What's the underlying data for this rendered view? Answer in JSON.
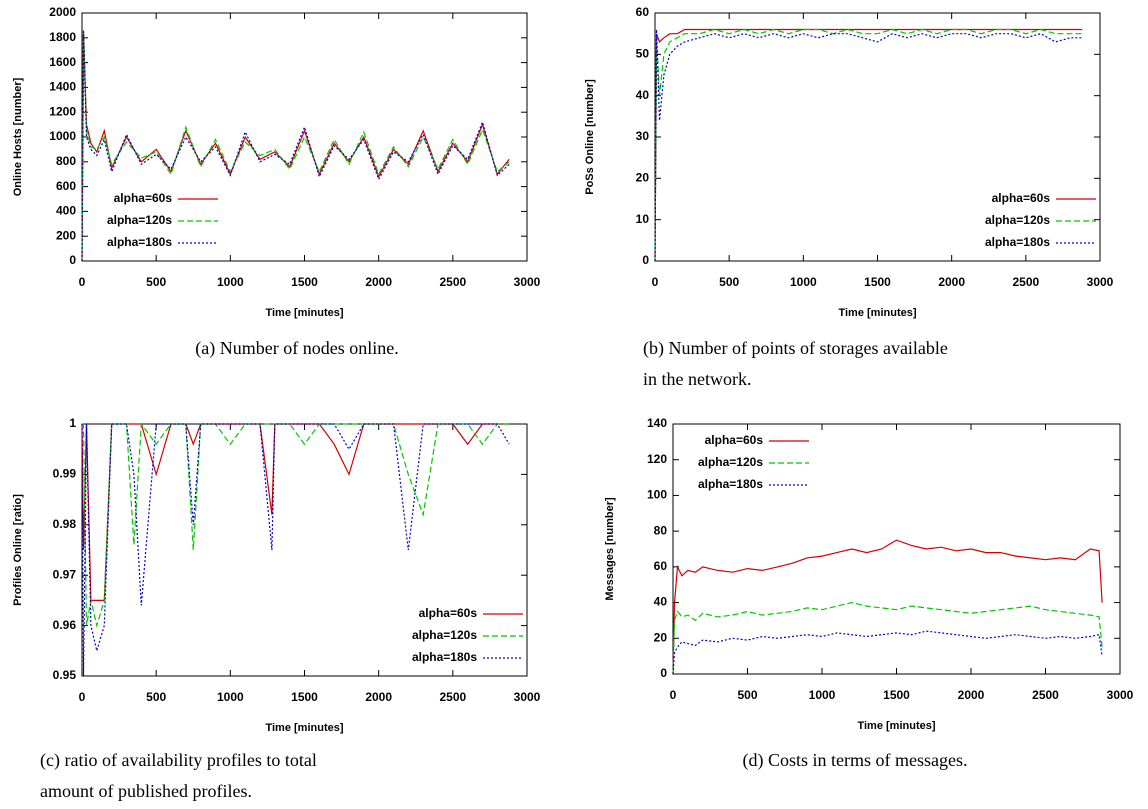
{
  "chart_data": [
    {
      "type": "line",
      "caption": [
        "(a) Number of nodes online."
      ],
      "xlabel": "Time [minutes]",
      "ylabel": "Online Hosts [number]",
      "x": [
        0,
        10,
        30,
        60,
        100,
        150,
        200,
        300,
        400,
        500,
        600,
        700,
        800,
        900,
        1000,
        1100,
        1200,
        1300,
        1400,
        1500,
        1600,
        1700,
        1800,
        1900,
        2000,
        2100,
        2200,
        2300,
        2400,
        2500,
        2600,
        2700,
        2800,
        2880
      ],
      "xlim": [
        0,
        3000
      ],
      "xticks": [
        0,
        500,
        1000,
        1500,
        2000,
        2500,
        3000
      ],
      "ylim": [
        0,
        2000
      ],
      "yticks": [
        0,
        200,
        400,
        600,
        800,
        1000,
        1200,
        1400,
        1600,
        1800,
        2000
      ],
      "legend": "lower left",
      "series": [
        {
          "name": "alpha=60s",
          "color": "#d40000",
          "values": [
            0,
            1860,
            1100,
            950,
            880,
            1050,
            750,
            1000,
            800,
            900,
            720,
            1050,
            780,
            950,
            700,
            1000,
            820,
            880,
            760,
            1050,
            700,
            950,
            800,
            1000,
            680,
            900,
            780,
            1050,
            720,
            950,
            800,
            1100,
            700,
            820
          ]
        },
        {
          "name": "alpha=120s",
          "color": "#00c800",
          "values": [
            0,
            1840,
            1050,
            920,
            900,
            1000,
            780,
            960,
            830,
            880,
            700,
            1080,
            760,
            980,
            720,
            960,
            850,
            900,
            740,
            1000,
            720,
            980,
            780,
            1040,
            700,
            920,
            760,
            1000,
            740,
            980,
            780,
            1060,
            720,
            800
          ]
        },
        {
          "name": "alpha=180s",
          "color": "#0000d0",
          "values": [
            0,
            1850,
            1000,
            900,
            850,
            980,
            720,
            1020,
            780,
            860,
            740,
            1000,
            800,
            920,
            690,
            1040,
            800,
            860,
            780,
            1080,
            680,
            930,
            820,
            980,
            660,
            880,
            800,
            1020,
            700,
            930,
            820,
            1120,
            690,
            780
          ]
        }
      ]
    },
    {
      "type": "line",
      "caption": [
        "(b) Number of points of storages available",
        "in the network."
      ],
      "xlabel": "Time [minutes]",
      "ylabel": "PoSs Online [number]",
      "x": [
        0,
        10,
        30,
        60,
        100,
        150,
        200,
        300,
        400,
        500,
        600,
        700,
        800,
        900,
        1000,
        1100,
        1200,
        1300,
        1400,
        1500,
        1600,
        1700,
        1800,
        1900,
        2000,
        2100,
        2200,
        2300,
        2400,
        2500,
        2600,
        2700,
        2800,
        2880
      ],
      "xlim": [
        0,
        3000
      ],
      "xticks": [
        0,
        500,
        1000,
        1500,
        2000,
        2500,
        3000
      ],
      "ylim": [
        0,
        60
      ],
      "yticks": [
        0,
        10,
        20,
        30,
        40,
        50,
        60
      ],
      "legend": "lower right",
      "series": [
        {
          "name": "alpha=60s",
          "color": "#d40000",
          "values": [
            0,
            55,
            53,
            54,
            55,
            55,
            56,
            56,
            56,
            56,
            56,
            56,
            56,
            56,
            56,
            56,
            56,
            56,
            56,
            56,
            56,
            56,
            56,
            56,
            56,
            56,
            56,
            56,
            56,
            56,
            56,
            56,
            56,
            56
          ]
        },
        {
          "name": "alpha=120s",
          "color": "#00c800",
          "values": [
            0,
            54,
            40,
            50,
            53,
            54,
            55,
            55,
            56,
            55,
            56,
            55,
            56,
            55,
            56,
            56,
            55,
            56,
            55,
            55,
            56,
            55,
            56,
            55,
            56,
            56,
            55,
            56,
            56,
            55,
            56,
            55,
            55,
            55
          ]
        },
        {
          "name": "alpha=180s",
          "color": "#0000d0",
          "values": [
            0,
            56,
            34,
            45,
            50,
            52,
            53,
            54,
            55,
            54,
            55,
            54,
            55,
            54,
            55,
            54,
            55,
            55,
            54,
            53,
            55,
            54,
            55,
            54,
            55,
            55,
            54,
            55,
            55,
            54,
            55,
            53,
            54,
            54
          ]
        }
      ]
    },
    {
      "type": "line",
      "caption": [
        "(c) ratio of availability profiles to total",
        "amount of published profiles."
      ],
      "xlabel": "Time [minutes]",
      "ylabel": "Profiles Online [ratio]",
      "x": [
        0,
        10,
        30,
        60,
        100,
        150,
        200,
        300,
        350,
        400,
        500,
        600,
        700,
        750,
        800,
        900,
        1000,
        1100,
        1200,
        1280,
        1300,
        1400,
        1500,
        1600,
        1700,
        1800,
        1900,
        2000,
        2100,
        2200,
        2300,
        2400,
        2500,
        2600,
        2700,
        2800,
        2880
      ],
      "xlim": [
        0,
        3000
      ],
      "xticks": [
        0,
        500,
        1000,
        1500,
        2000,
        2500,
        3000
      ],
      "ylim": [
        0.95,
        1
      ],
      "yticks": [
        0.95,
        0.96,
        0.97,
        0.98,
        0.99,
        1
      ],
      "legend": "lower right",
      "series": [
        {
          "name": "alpha=60s",
          "color": "#d40000",
          "values": [
            1,
            0.975,
            1,
            0.965,
            0.965,
            0.965,
            1,
            1,
            1,
            1,
            0.99,
            1,
            1,
            0.996,
            1,
            1,
            1,
            1,
            1,
            0.982,
            1,
            1,
            1,
            1,
            0.996,
            0.99,
            1,
            1,
            1,
            1,
            1,
            1,
            1,
            0.996,
            1,
            1,
            1
          ]
        },
        {
          "name": "alpha=120s",
          "color": "#00c800",
          "values": [
            1,
            1,
            0.96,
            0.965,
            0.96,
            0.965,
            1,
            1,
            0.976,
            1,
            0.996,
            1,
            1,
            0.975,
            1,
            1,
            0.996,
            1,
            1,
            1,
            1,
            1,
            0.996,
            1,
            1,
            1,
            1,
            1,
            1,
            0.99,
            0.982,
            1,
            1,
            1,
            0.996,
            1,
            1
          ]
        },
        {
          "name": "alpha=180s",
          "color": "#0000d0",
          "values": [
            1,
            0.95,
            1,
            0.96,
            0.955,
            0.96,
            1,
            1,
            0.99,
            0.964,
            1,
            1,
            1,
            0.98,
            1,
            1,
            1,
            1,
            1,
            0.975,
            1,
            1,
            1,
            1,
            1,
            0.995,
            1,
            1,
            1,
            0.975,
            1,
            1,
            1,
            1,
            1,
            1,
            0.996
          ]
        }
      ]
    },
    {
      "type": "line",
      "caption": [
        "(d) Costs in terms of messages."
      ],
      "xlabel": "Time [minutes]",
      "ylabel": "Messages [number]",
      "x": [
        0,
        10,
        30,
        60,
        100,
        150,
        200,
        300,
        400,
        500,
        600,
        700,
        800,
        900,
        1000,
        1100,
        1200,
        1300,
        1400,
        1500,
        1600,
        1700,
        1800,
        1900,
        2000,
        2100,
        2200,
        2300,
        2400,
        2500,
        2600,
        2700,
        2800,
        2860,
        2880
      ],
      "xlim": [
        0,
        3000
      ],
      "xticks": [
        0,
        500,
        1000,
        1500,
        2000,
        2500,
        3000
      ],
      "ylim": [
        0,
        140
      ],
      "yticks": [
        0,
        20,
        40,
        60,
        80,
        100,
        120,
        140
      ],
      "legend": "upper left",
      "series": [
        {
          "name": "alpha=60s",
          "color": "#d40000",
          "values": [
            0,
            40,
            60,
            55,
            58,
            57,
            60,
            58,
            57,
            59,
            58,
            60,
            62,
            65,
            66,
            68,
            70,
            68,
            70,
            75,
            72,
            70,
            71,
            69,
            70,
            68,
            68,
            66,
            65,
            64,
            65,
            64,
            70,
            69,
            40
          ]
        },
        {
          "name": "alpha=120s",
          "color": "#00c800",
          "values": [
            0,
            30,
            35,
            32,
            33,
            30,
            34,
            32,
            33,
            35,
            33,
            34,
            35,
            37,
            36,
            38,
            40,
            38,
            37,
            36,
            38,
            37,
            36,
            35,
            34,
            35,
            36,
            37,
            38,
            36,
            35,
            34,
            33,
            32,
            15
          ]
        },
        {
          "name": "alpha=180s",
          "color": "#0000d0",
          "values": [
            0,
            12,
            15,
            18,
            17,
            16,
            19,
            18,
            20,
            19,
            21,
            20,
            21,
            22,
            21,
            23,
            22,
            21,
            22,
            23,
            22,
            24,
            23,
            22,
            21,
            20,
            21,
            22,
            21,
            20,
            21,
            20,
            21,
            22,
            10
          ]
        }
      ]
    }
  ]
}
